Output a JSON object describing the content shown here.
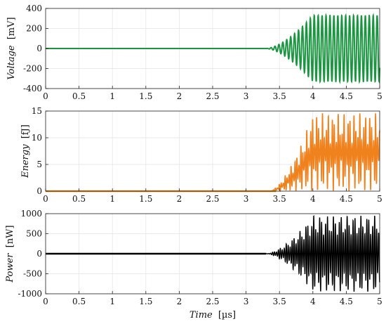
{
  "chart_data": [
    {
      "type": "line",
      "ylabel_name": "Voltage",
      "ylabel_unit": "[mV]",
      "xlim": [
        0,
        5
      ],
      "ylim": [
        -400,
        400
      ],
      "xticks": [
        "0",
        "0.5",
        "1",
        "1.5",
        "2",
        "2.5",
        "3",
        "3.5",
        "4",
        "4.5",
        "5"
      ],
      "yticks": [
        "-400",
        "-200",
        "0",
        "200",
        "400"
      ],
      "grid": true,
      "series": [
        {
          "color": "#1a9641",
          "description": "flat at 0 until about 3.3 µs, then a sinusoidal oscillation whose amplitude grows to about 330 mV by 4 µs and stays constant",
          "onset": 3.3,
          "saturation_time": 4.0,
          "amplitude": 330,
          "cycles_per_us": 17
        }
      ]
    },
    {
      "type": "line",
      "ylabel_name": "Energy",
      "ylabel_unit": "[fJ]",
      "xlim": [
        0,
        5
      ],
      "ylim": [
        0,
        15
      ],
      "xticks": [
        "0",
        "0.5",
        "1",
        "1.5",
        "2",
        "2.5",
        "3",
        "3.5",
        "4",
        "4.5",
        "5"
      ],
      "yticks": [
        "0",
        "5",
        "10",
        "15"
      ],
      "grid": true,
      "series": [
        {
          "color": "#f0821e",
          "description": "zero until about 3.4 µs, then oscillating between 0 and about 14.6 fJ, envelope saturating near 4 µs",
          "onset": 3.35,
          "saturation_time": 4.0,
          "max": 14.6
        },
        {
          "color": "#c8961e",
          "description": "baseline trace at 0 from 0 to about 3.4 µs"
        }
      ]
    },
    {
      "type": "line",
      "ylabel_name": "Power",
      "ylabel_unit": "[nW]",
      "xlabel_name": "Time",
      "xlabel_unit": "[µs]",
      "xlim": [
        0,
        5
      ],
      "ylim": [
        -1000,
        1000
      ],
      "xticks": [
        "0",
        "0.5",
        "1",
        "1.5",
        "2",
        "2.5",
        "3",
        "3.5",
        "4",
        "4.5",
        "5"
      ],
      "yticks": [
        "-1000",
        "-500",
        "0",
        "500",
        "1000"
      ],
      "grid": true,
      "series": [
        {
          "color": "#000000",
          "description": "zero until about 3.3 µs, then oscillating with envelope growing to about 950 nW by 4 µs",
          "onset": 3.3,
          "saturation_time": 4.0,
          "amplitude": 950
        }
      ]
    }
  ]
}
